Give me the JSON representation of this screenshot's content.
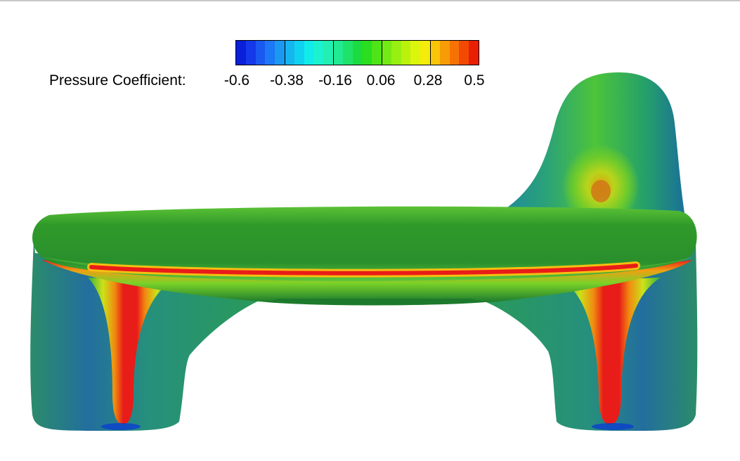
{
  "legend": {
    "title": "Pressure Coefficient:",
    "ticks": [
      "-0.6",
      "-0.38",
      "-0.16",
      "0.06",
      "0.28",
      "0.5"
    ],
    "colors": [
      "#0a1fd9",
      "#1438ea",
      "#1a58f2",
      "#1c78f4",
      "#1b98f2",
      "#15b6f0",
      "#10d2ee",
      "#10ecea",
      "#1cf2cf",
      "#22efb2",
      "#22ea93",
      "#1ee26a",
      "#1cdb40",
      "#2ade20",
      "#4ee418",
      "#74ea14",
      "#98ef12",
      "#baf20e",
      "#dcf50c",
      "#f4ec0a",
      "#f8c508",
      "#f89c06",
      "#f67204",
      "#f24a02",
      "#e81f00"
    ]
  },
  "colors": {
    "body_green": "#2f9a2a",
    "dark_green": "#1c7a2e",
    "teal": "#2c8f86",
    "peak_red": "#e81c18"
  }
}
